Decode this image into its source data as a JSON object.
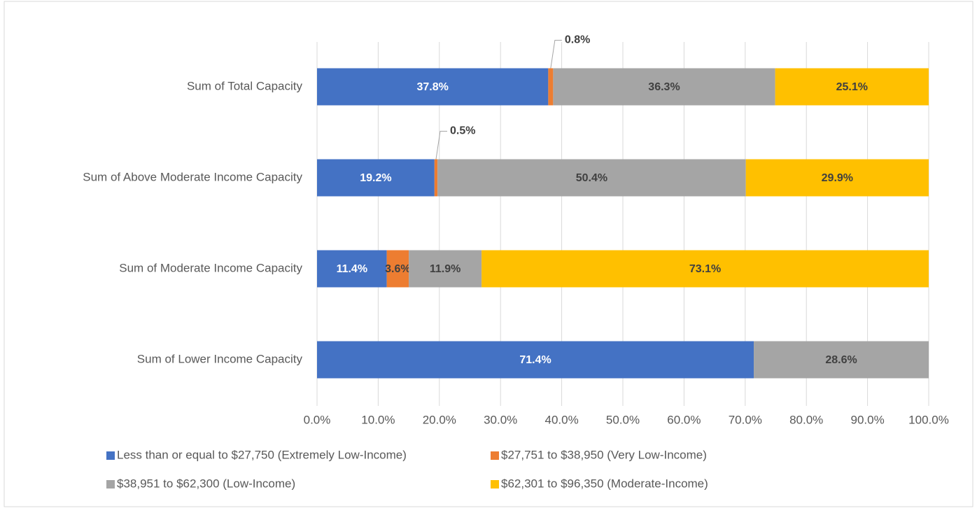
{
  "chart_data": {
    "type": "stacked-bar-horizontal",
    "categories": [
      "Sum of Total Capacity",
      "Sum of Above Moderate Income Capacity",
      "Sum of Moderate Income Capacity",
      "Sum of Lower Income Capacity"
    ],
    "series": [
      {
        "name": "Less than or equal to $27,750 (Extremely Low-Income)",
        "color": "#4472c4",
        "values": [
          37.8,
          19.2,
          11.4,
          71.4
        ],
        "value_labels": [
          "37.8%",
          "19.2%",
          "11.4%",
          "71.4%"
        ]
      },
      {
        "name": "$27,751 to $38,950 (Very Low-Income)",
        "color": "#ed7d31",
        "values": [
          0.8,
          0.5,
          3.6,
          0
        ],
        "value_labels": [
          "0.8%",
          "0.5%",
          "3.6%",
          null
        ]
      },
      {
        "name": "$38,951 to $62,300 (Low-Income)",
        "color": "#a5a5a5",
        "values": [
          36.3,
          50.4,
          11.9,
          28.6
        ],
        "value_labels": [
          "36.3%",
          "50.4%",
          "11.9%",
          "28.6%"
        ]
      },
      {
        "name": "$62,301 to $96,350 (Moderate-Income)",
        "color": "#ffc000",
        "values": [
          25.1,
          29.9,
          73.1,
          0
        ],
        "value_labels": [
          "25.1%",
          "29.9%",
          "73.1%",
          null
        ]
      }
    ],
    "xlim": [
      0,
      100
    ],
    "xticks": [
      {
        "value": 0,
        "label": "0.0%"
      },
      {
        "value": 10,
        "label": "10.0%"
      },
      {
        "value": 20,
        "label": "20.0%"
      },
      {
        "value": 30,
        "label": "30.0%"
      },
      {
        "value": 40,
        "label": "40.0%"
      },
      {
        "value": 50,
        "label": "50.0%"
      },
      {
        "value": 60,
        "label": "60.0%"
      },
      {
        "value": 70,
        "label": "70.0%"
      },
      {
        "value": 80,
        "label": "80.0%"
      },
      {
        "value": 90,
        "label": "90.0%"
      },
      {
        "value": 100,
        "label": "100.0%"
      }
    ],
    "grid": true,
    "legend": "bottom"
  }
}
